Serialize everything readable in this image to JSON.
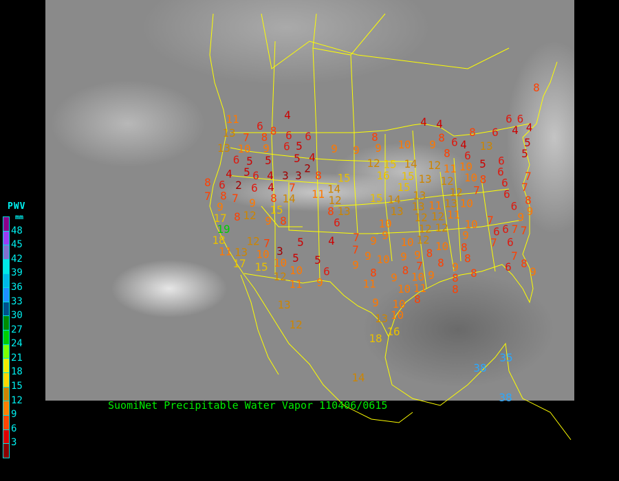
{
  "map": {
    "caption": "SuomiNet Precipitable Water Vapor  110406/0615",
    "border_color": "#ffff00"
  },
  "legend": {
    "title": "PWV",
    "unit": "mm",
    "labels": [
      "48",
      "45",
      "42",
      "39",
      "36",
      "33",
      "30",
      "27",
      "24",
      "21",
      "18",
      "15",
      "12",
      "9",
      "6",
      "3"
    ],
    "colors": [
      "#8b008b",
      "#9a3cf5",
      "#8070d0",
      "#00e8e8",
      "#00b8e8",
      "#1e90ff",
      "#00508c",
      "#008b00",
      "#00cd00",
      "#7fff00",
      "#eeee00",
      "#ffd700",
      "#cd8500",
      "#ff8000",
      "#ff4500",
      "#dd0000",
      "#8b0000"
    ]
  },
  "stations": [
    "4",
    "6",
    "8",
    "6",
    "6",
    "11",
    "13",
    "13",
    "10",
    "7",
    "8",
    "9",
    "6",
    "5",
    "6",
    "5",
    "5",
    "5",
    "5",
    "4",
    "2",
    "9",
    "9",
    "4",
    "6",
    "4",
    "3",
    "3",
    "8",
    "8",
    "6",
    "2",
    "6",
    "4",
    "7",
    "7",
    "8",
    "7",
    "9",
    "9",
    "8",
    "14",
    "11",
    "14",
    "15",
    "12",
    "13",
    "8",
    "15",
    "8",
    "8",
    "12",
    "9",
    "6",
    "17",
    "4",
    "4",
    "8",
    "9",
    "10",
    "9",
    "8",
    "6",
    "8",
    "8",
    "6",
    "6",
    "6",
    "4",
    "4",
    "13",
    "4",
    "6",
    "5",
    "5",
    "12",
    "15",
    "14",
    "16",
    "12",
    "11",
    "10",
    "5",
    "6",
    "10",
    "6",
    "7",
    "15",
    "13",
    "15",
    "12",
    "8",
    "7",
    "6",
    "6",
    "7",
    "15",
    "14",
    "13",
    "12",
    "13",
    "10",
    "8",
    "6",
    "9",
    "11",
    "13",
    "13",
    "11",
    "12",
    "12",
    "9",
    "10",
    "12",
    "12",
    "10",
    "7",
    "6",
    "7",
    "19",
    "18",
    "11",
    "13",
    "17",
    "12",
    "7",
    "10",
    "3",
    "5",
    "4",
    "5",
    "10",
    "15",
    "10",
    "5",
    "6",
    "12",
    "11",
    "9",
    "13",
    "12",
    "7",
    "9",
    "7",
    "9",
    "9",
    "8",
    "11",
    "9",
    "18",
    "9",
    "10",
    "12",
    "9",
    "8",
    "10",
    "9",
    "6",
    "7",
    "7",
    "6",
    "8",
    "8",
    "7",
    "8",
    "9",
    "6",
    "8",
    "9",
    "8",
    "7",
    "9",
    "8",
    "8",
    "10",
    "9",
    "8",
    "10",
    "9",
    "10",
    "11",
    "8",
    "10",
    "10",
    "13",
    "16",
    "8",
    "14",
    "38",
    "35",
    "38"
  ]
}
